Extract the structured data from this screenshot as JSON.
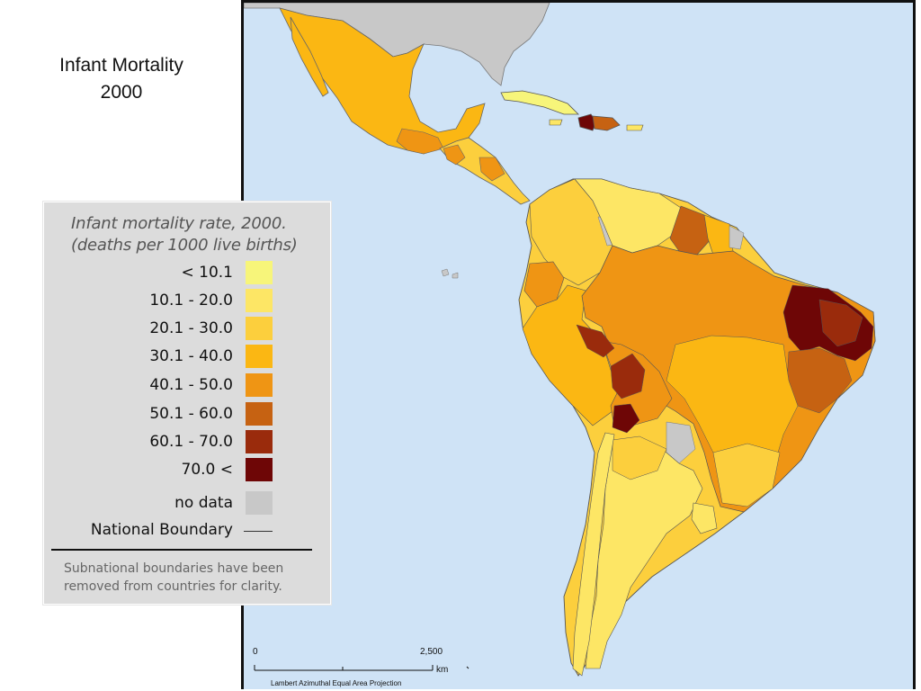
{
  "slide": {
    "title_line1": "Infant Mortality",
    "title_line2": "2000"
  },
  "legend": {
    "title_line1": "Infant mortality rate, 2000.",
    "title_line2": "(deaths per 1000 live births)",
    "classes": [
      {
        "label": "< 10.1",
        "color": "#f7f57a"
      },
      {
        "label": "10.1 - 20.0",
        "color": "#fde665"
      },
      {
        "label": "20.1 - 30.0",
        "color": "#fccf3d"
      },
      {
        "label": "30.1 - 40.0",
        "color": "#fbb713"
      },
      {
        "label": "40.1 - 50.0",
        "color": "#ef9514"
      },
      {
        "label": "50.1 - 60.0",
        "color": "#c66212"
      },
      {
        "label": "60.1 - 70.0",
        "color": "#9a2b0c"
      },
      {
        "label": "70.0 <",
        "color": "#6e0606"
      },
      {
        "label": "no data",
        "color": "#c8c8c8"
      }
    ],
    "boundary_label": "National Boundary",
    "note": "Subnational boundaries have been removed from countries for clarity."
  },
  "map": {
    "ocean_color": "#cfe3f6",
    "nodata_color": "#c8c8c8",
    "scale_start": "0",
    "scale_end": "2,500",
    "scale_unit": "km",
    "projection": "Lambert Azimuthal Equal Area Projection"
  }
}
